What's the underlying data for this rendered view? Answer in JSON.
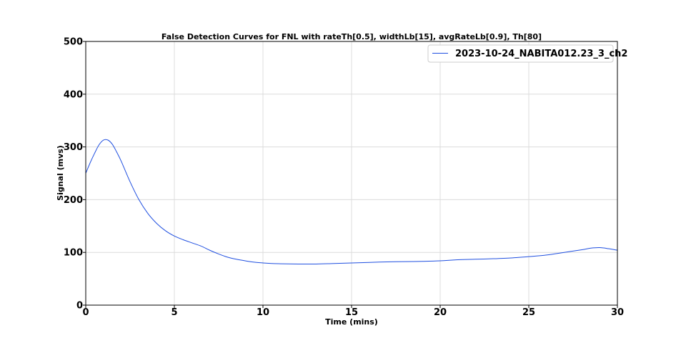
{
  "chart_data": {
    "type": "line",
    "title": "False Detection Curves for FNL with rateTh[0.5], widthLb[15], avgRateLb[0.9], Th[80]",
    "xlabel": "Time (mins)",
    "ylabel": "Signal (mvs)",
    "xlim": [
      0,
      30
    ],
    "ylim": [
      0,
      500
    ],
    "xticks": [
      0,
      5,
      10,
      15,
      20,
      25,
      30
    ],
    "yticks": [
      0,
      100,
      200,
      300,
      400,
      500
    ],
    "grid": true,
    "legend_position": "top-right",
    "series": [
      {
        "name": "2023-10-24_NABITA012.23_3_ch2",
        "color": "#1f4fe0",
        "x": [
          0,
          0.25,
          0.5,
          0.75,
          1,
          1.25,
          1.5,
          1.75,
          2,
          2.5,
          3,
          3.5,
          4,
          4.5,
          5,
          5.5,
          6,
          6.5,
          7,
          7.5,
          8,
          8.5,
          9,
          9.5,
          10,
          10.5,
          11,
          12,
          13,
          14,
          15,
          16,
          17,
          18,
          19,
          20,
          21,
          22,
          23,
          24,
          25,
          26,
          27,
          28,
          28.5,
          29,
          29.5,
          30
        ],
        "y": [
          250,
          270,
          288,
          304,
          313,
          313,
          305,
          290,
          273,
          234,
          200,
          174,
          155,
          141,
          131,
          124,
          118,
          112,
          104,
          97,
          91,
          87,
          84,
          81.5,
          80,
          79,
          78.5,
          78,
          78,
          79,
          80,
          81,
          82,
          82.5,
          83,
          84,
          86,
          87,
          88,
          89.5,
          92,
          95,
          100,
          105,
          108,
          109,
          107,
          104
        ]
      }
    ]
  }
}
